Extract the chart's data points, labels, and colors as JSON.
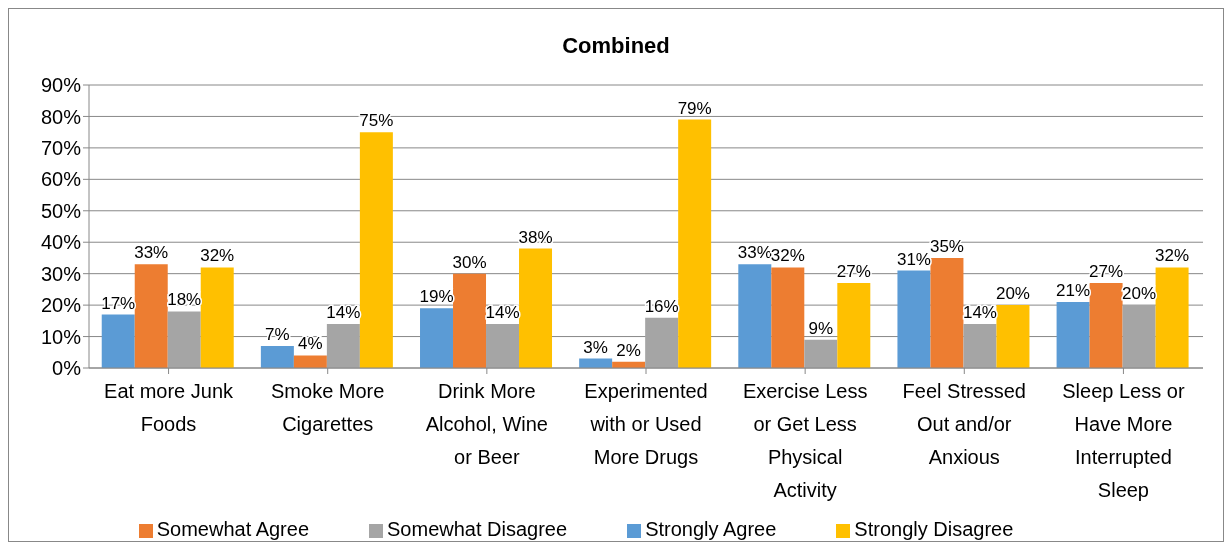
{
  "chart_data": {
    "type": "bar",
    "title": "Combined",
    "categories": [
      "Eat more Junk Foods",
      "Smoke More Cigarettes",
      "Drink More Alcohol, Wine or Beer",
      "Experimented with or Used More Drugs",
      "Exercise Less or Get Less Physical Activity",
      "Feel Stressed Out and/or Anxious",
      "Sleep Less or Have More Interrupted Sleep"
    ],
    "series": [
      {
        "name": "Strongly Agree",
        "color": "#5b9bd5",
        "values": [
          17,
          7,
          19,
          3,
          33,
          31,
          21
        ],
        "value_labels": [
          "17%",
          "7%",
          "19%",
          "3%",
          "33%",
          "31%",
          "21%"
        ]
      },
      {
        "name": "Somewhat Agree",
        "color": "#ed7d31",
        "values": [
          33,
          4,
          30,
          2,
          32,
          35,
          27
        ],
        "value_labels": [
          "33%",
          "4%",
          "30%",
          "2%",
          "32%",
          "35%",
          "27%"
        ]
      },
      {
        "name": "Somewhat Disagree",
        "color": "#a5a5a5",
        "values": [
          18,
          14,
          14,
          16,
          9,
          14,
          20
        ],
        "value_labels": [
          "18%",
          "14%",
          "14%",
          "16%",
          "9%",
          "14%",
          "20%"
        ]
      },
      {
        "name": "Strongly Disagree",
        "color": "#ffc000",
        "values": [
          32,
          75,
          38,
          79,
          27,
          20,
          32
        ],
        "value_labels": [
          "32%",
          "75%",
          "38%",
          "79%",
          "27%",
          "20%",
          "32%"
        ]
      }
    ],
    "ylim": [
      0,
      90
    ],
    "yticks": [
      {
        "value": 0,
        "label": "0%"
      },
      {
        "value": 10,
        "label": "10%"
      },
      {
        "value": 20,
        "label": "20%"
      },
      {
        "value": 30,
        "label": "30%"
      },
      {
        "value": 40,
        "label": "40%"
      },
      {
        "value": 50,
        "label": "50%"
      },
      {
        "value": 60,
        "label": "60%"
      },
      {
        "value": 70,
        "label": "70%"
      },
      {
        "value": 80,
        "label": "80%"
      },
      {
        "value": 90,
        "label": "90%"
      }
    ],
    "grid": "y",
    "legend": "bottom"
  }
}
